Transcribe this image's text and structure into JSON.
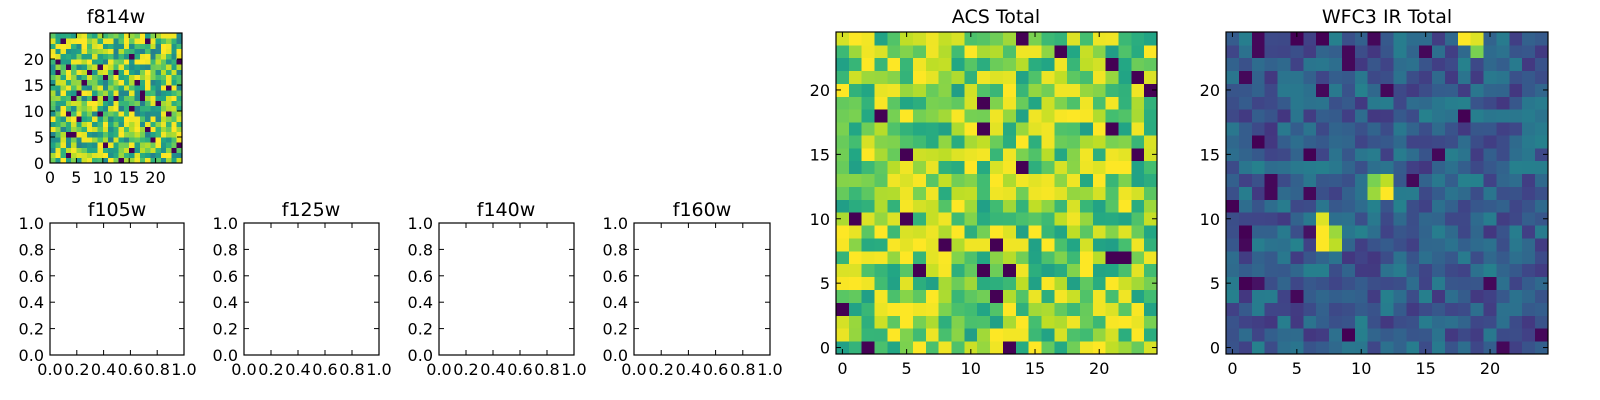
{
  "chart_data": [
    {
      "id": "f814w",
      "type": "heatmap",
      "title": "f814w",
      "grid_size": 25,
      "colormap": "viridis",
      "xticks": [
        "0",
        "5",
        "10",
        "15",
        "20"
      ],
      "yticks": [
        "0",
        "5",
        "10",
        "15",
        "20"
      ],
      "xlim": [
        0,
        25
      ],
      "ylim": [
        0,
        25
      ],
      "seed": 814,
      "fill_mode": "noise",
      "base_value": 0.75,
      "spread": 0.4
    },
    {
      "id": "f105w",
      "type": "empty",
      "title": "f105w",
      "xticks": [
        "0.0",
        "0.2",
        "0.4",
        "0.6",
        "0.8",
        "1.0"
      ],
      "yticks": [
        "0.0",
        "0.2",
        "0.4",
        "0.6",
        "0.8",
        "1.0"
      ],
      "xlim": [
        0,
        1
      ],
      "ylim": [
        0,
        1
      ]
    },
    {
      "id": "f125w",
      "type": "empty",
      "title": "f125w",
      "xticks": [
        "0.0",
        "0.2",
        "0.4",
        "0.6",
        "0.8",
        "1.0"
      ],
      "yticks": [
        "0.0",
        "0.2",
        "0.4",
        "0.6",
        "0.8",
        "1.0"
      ],
      "xlim": [
        0,
        1
      ],
      "ylim": [
        0,
        1
      ]
    },
    {
      "id": "f140w",
      "type": "empty",
      "title": "f140w",
      "xticks": [
        "0.0",
        "0.2",
        "0.4",
        "0.6",
        "0.8",
        "1.0"
      ],
      "yticks": [
        "0.0",
        "0.2",
        "0.4",
        "0.6",
        "0.8",
        "1.0"
      ],
      "xlim": [
        0,
        1
      ],
      "ylim": [
        0,
        1
      ]
    },
    {
      "id": "f160w",
      "type": "empty",
      "title": "f160w",
      "xticks": [
        "0.0",
        "0.2",
        "0.4",
        "0.6",
        "0.8",
        "1.0"
      ],
      "yticks": [
        "0.0",
        "0.2",
        "0.4",
        "0.6",
        "0.8",
        "1.0"
      ],
      "xlim": [
        0,
        1
      ],
      "ylim": [
        0,
        1
      ]
    },
    {
      "id": "acs_total",
      "type": "heatmap",
      "title": "ACS Total",
      "grid_size": 25,
      "colormap": "viridis",
      "xticks": [
        "0",
        "5",
        "10",
        "15",
        "20"
      ],
      "yticks": [
        "0",
        "5",
        "10",
        "15",
        "20"
      ],
      "xlim": [
        -0.5,
        24.5
      ],
      "ylim": [
        -0.5,
        24.5
      ],
      "seed": 2016,
      "fill_mode": "noise",
      "base_value": 0.8,
      "spread": 0.3
    },
    {
      "id": "wfc3_ir_total",
      "type": "heatmap",
      "title": "WFC3 IR Total",
      "grid_size": 25,
      "colormap": "viridis",
      "xticks": [
        "0",
        "5",
        "10",
        "15",
        "20"
      ],
      "yticks": [
        "0",
        "5",
        "10",
        "15",
        "20"
      ],
      "xlim": [
        -0.5,
        24.5
      ],
      "ylim": [
        -0.5,
        24.5
      ],
      "seed": 313,
      "fill_mode": "dark_noise",
      "base_value": 0.3,
      "spread": 0.2,
      "bright_pixels": [
        {
          "x": 7,
          "y": 8,
          "value": 1.0
        },
        {
          "x": 7,
          "y": 9,
          "value": 1.0
        },
        {
          "x": 7,
          "y": 10,
          "value": 0.95
        },
        {
          "x": 8,
          "y": 8,
          "value": 0.9
        },
        {
          "x": 8,
          "y": 9,
          "value": 0.85
        },
        {
          "x": 11,
          "y": 12,
          "value": 0.85
        },
        {
          "x": 12,
          "y": 12,
          "value": 1.0
        },
        {
          "x": 12,
          "y": 13,
          "value": 0.9
        },
        {
          "x": 11,
          "y": 13,
          "value": 0.8
        },
        {
          "x": 18,
          "y": 24,
          "value": 1.0
        },
        {
          "x": 19,
          "y": 24,
          "value": 0.95
        },
        {
          "x": 19,
          "y": 23,
          "value": 0.8
        }
      ],
      "dark_pixels": [
        {
          "x": 0,
          "y": 11,
          "value": 0.0
        },
        {
          "x": 1,
          "y": 9,
          "value": 0.0
        },
        {
          "x": 1,
          "y": 5,
          "value": 0.0
        },
        {
          "x": 2,
          "y": 5,
          "value": 0.05
        },
        {
          "x": 6,
          "y": 15,
          "value": 0.0
        },
        {
          "x": 6,
          "y": 9,
          "value": 0.05
        },
        {
          "x": 9,
          "y": 1,
          "value": 0.0
        },
        {
          "x": 18,
          "y": 18,
          "value": 0.0
        },
        {
          "x": 5,
          "y": 24,
          "value": 0.0
        },
        {
          "x": 7,
          "y": 24,
          "value": 0.0
        },
        {
          "x": 2,
          "y": 16,
          "value": 0.0
        }
      ]
    }
  ]
}
